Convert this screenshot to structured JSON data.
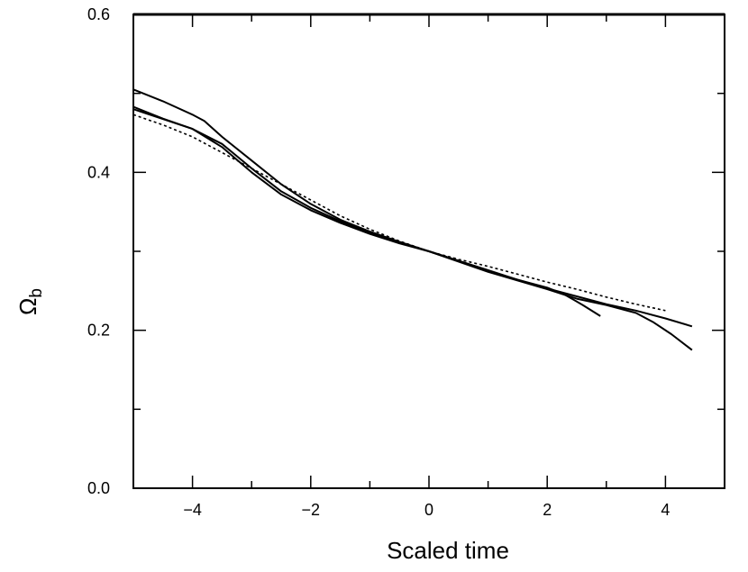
{
  "chart_data": {
    "type": "line",
    "title": "",
    "xlabel": "Scaled time",
    "ylabel": "Ω_b",
    "ylabel_main": "Ω",
    "ylabel_sub": "b",
    "xlim": [
      -5,
      5
    ],
    "ylim": [
      0.0,
      0.6
    ],
    "xticks": [
      -4,
      -2,
      0,
      2,
      4
    ],
    "xtick_labels": [
      "−4",
      "−2",
      "0",
      "2",
      "4"
    ],
    "yticks": [
      0.0,
      0.2,
      0.4,
      0.6
    ],
    "ytick_labels": [
      "0.0",
      "0.2",
      "0.4",
      "0.6"
    ],
    "x_minor_step": 1,
    "y_minor_step": 0.1,
    "grid": false,
    "series": [
      {
        "style": "solid",
        "x": [
          -5.0,
          -4.5,
          -4.0,
          -3.8,
          -3.5,
          -3.0,
          -2.5,
          -2.0,
          -1.5,
          -1.0,
          -0.5,
          0.0,
          0.5,
          1.0,
          1.5,
          2.0,
          2.5,
          3.0,
          3.5,
          4.0,
          4.45
        ],
        "y": [
          0.505,
          0.49,
          0.473,
          0.465,
          0.445,
          0.415,
          0.385,
          0.36,
          0.34,
          0.325,
          0.312,
          0.3,
          0.288,
          0.275,
          0.264,
          0.253,
          0.243,
          0.233,
          0.225,
          0.215,
          0.205
        ]
      },
      {
        "style": "solid",
        "x": [
          -5.0,
          -4.5,
          -4.0,
          -3.5,
          -3.0,
          -2.5,
          -2.0,
          -1.5,
          -1.0,
          -0.5,
          0.0,
          0.5,
          1.0,
          1.5,
          2.0,
          2.5,
          3.0,
          3.5,
          3.8,
          4.1,
          4.45
        ],
        "y": [
          0.483,
          0.468,
          0.455,
          0.432,
          0.4,
          0.372,
          0.352,
          0.336,
          0.322,
          0.31,
          0.3,
          0.287,
          0.274,
          0.263,
          0.252,
          0.24,
          0.232,
          0.222,
          0.21,
          0.195,
          0.175
        ]
      },
      {
        "style": "solid",
        "x": [
          -5.0,
          -4.0,
          -3.5,
          -3.0,
          -2.5,
          -2.0,
          -1.5,
          -1.0,
          -0.5,
          0.0,
          0.5,
          1.0,
          1.5,
          2.0,
          2.3,
          2.6,
          2.9
        ],
        "y": [
          0.48,
          0.455,
          0.436,
          0.405,
          0.376,
          0.355,
          0.338,
          0.324,
          0.311,
          0.3,
          0.288,
          0.276,
          0.264,
          0.254,
          0.245,
          0.232,
          0.218
        ]
      },
      {
        "style": "dotted",
        "x": [
          -5.0,
          -4.5,
          -4.0,
          -3.5,
          -3.0,
          -2.5,
          -2.0,
          -1.5,
          -1.0,
          -0.5,
          0.0,
          0.5,
          1.0,
          1.5,
          2.0,
          2.5,
          3.0,
          3.5,
          4.0
        ],
        "y": [
          0.473,
          0.46,
          0.445,
          0.425,
          0.405,
          0.385,
          0.365,
          0.345,
          0.328,
          0.313,
          0.3,
          0.29,
          0.281,
          0.271,
          0.261,
          0.252,
          0.242,
          0.233,
          0.225
        ]
      }
    ]
  }
}
